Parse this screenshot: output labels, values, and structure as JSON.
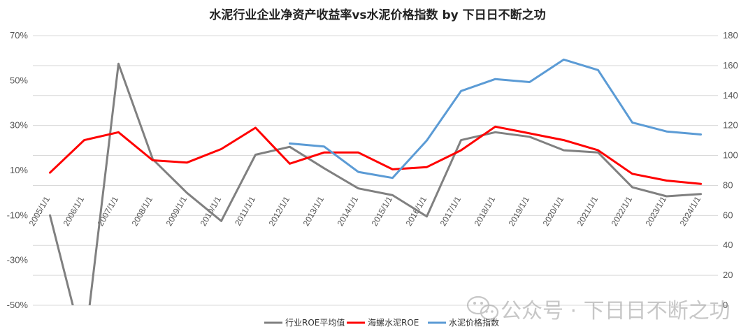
{
  "chart_data": {
    "type": "line",
    "title": "水泥行业企业净资产收益率vs水泥价格指数 by 下日日不断之功",
    "categories": [
      "2005/1/1",
      "2006/1/1",
      "2007/1/1",
      "2008/1/1",
      "2009/1/1",
      "2010/1/1",
      "2011/1/1",
      "2012/1/1",
      "2013/1/1",
      "2014/1/1",
      "2015/1/1",
      "2016/1/1",
      "2017/1/1",
      "2018/1/1",
      "2019/1/1",
      "2020/1/1",
      "2021/1/1",
      "2022/1/1",
      "2023/1/1",
      "2024/1/1"
    ],
    "y_left": {
      "ticks": [
        "70%",
        "50%",
        "30%",
        "10%",
        "-10%",
        "-30%",
        "-50%"
      ],
      "ylim": [
        -50,
        70
      ]
    },
    "y_right": {
      "ticks": [
        "180",
        "160",
        "140",
        "120",
        "100",
        "80",
        "60",
        "40",
        "20",
        "0"
      ],
      "ylim": [
        0,
        180
      ]
    },
    "series": [
      {
        "name": "行业ROE平均值",
        "color": "#808080",
        "axis": "left",
        "values": [
          -10,
          -70,
          57.5,
          15,
          0,
          -12.5,
          17,
          20.5,
          11,
          2,
          -1,
          -10.5,
          23.5,
          27,
          25,
          19,
          18,
          2.5,
          -1.5,
          -0.5
        ]
      },
      {
        "name": "海螺水泥ROE",
        "color": "#ff0000",
        "axis": "left",
        "values": [
          9,
          23.5,
          27,
          14.5,
          13.5,
          19.5,
          29,
          13,
          18,
          18,
          10.5,
          11.5,
          19,
          29.5,
          26.5,
          23.5,
          19,
          8.5,
          5.5,
          4
        ]
      },
      {
        "name": "水泥价格指数",
        "color": "#5b9bd5",
        "axis": "right",
        "values": [
          null,
          null,
          null,
          null,
          null,
          null,
          null,
          108,
          106,
          89,
          85,
          110,
          143,
          151,
          149,
          164,
          157,
          122,
          116,
          114
        ]
      }
    ],
    "grid": true,
    "legend_position": "bottom"
  },
  "watermark": {
    "text": "公众号 · 下日日不断之功",
    "icon": "wechat-icon"
  }
}
